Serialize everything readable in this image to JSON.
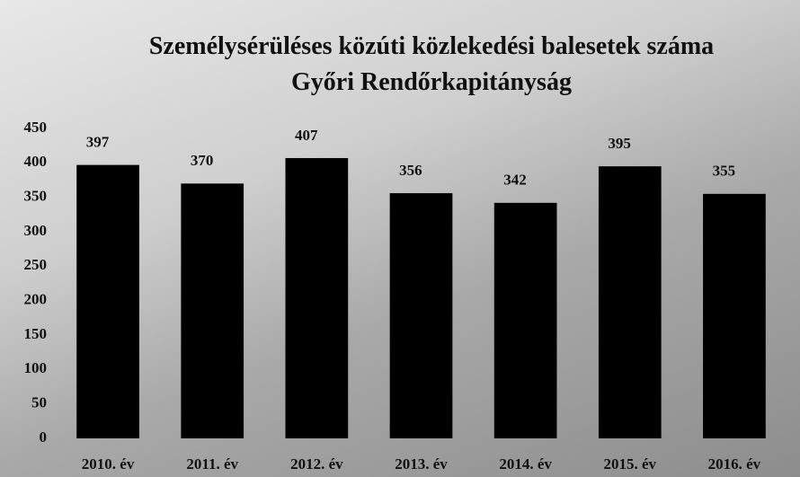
{
  "chart_data": {
    "type": "bar",
    "title": "Személysérüléses közúti közlekedési balesetek száma Győri Rendőrkapitányság",
    "categories": [
      "2010. év",
      "2011. év",
      "2012. év",
      "2013. év",
      "2014. év",
      "2015. év",
      "2016. év"
    ],
    "values": [
      397,
      370,
      407,
      356,
      342,
      395,
      355
    ],
    "color": "#000000",
    "ylim": [
      0,
      450
    ],
    "yticks": [
      0,
      50,
      100,
      150,
      200,
      250,
      300,
      350,
      400,
      450
    ],
    "grid": false
  }
}
